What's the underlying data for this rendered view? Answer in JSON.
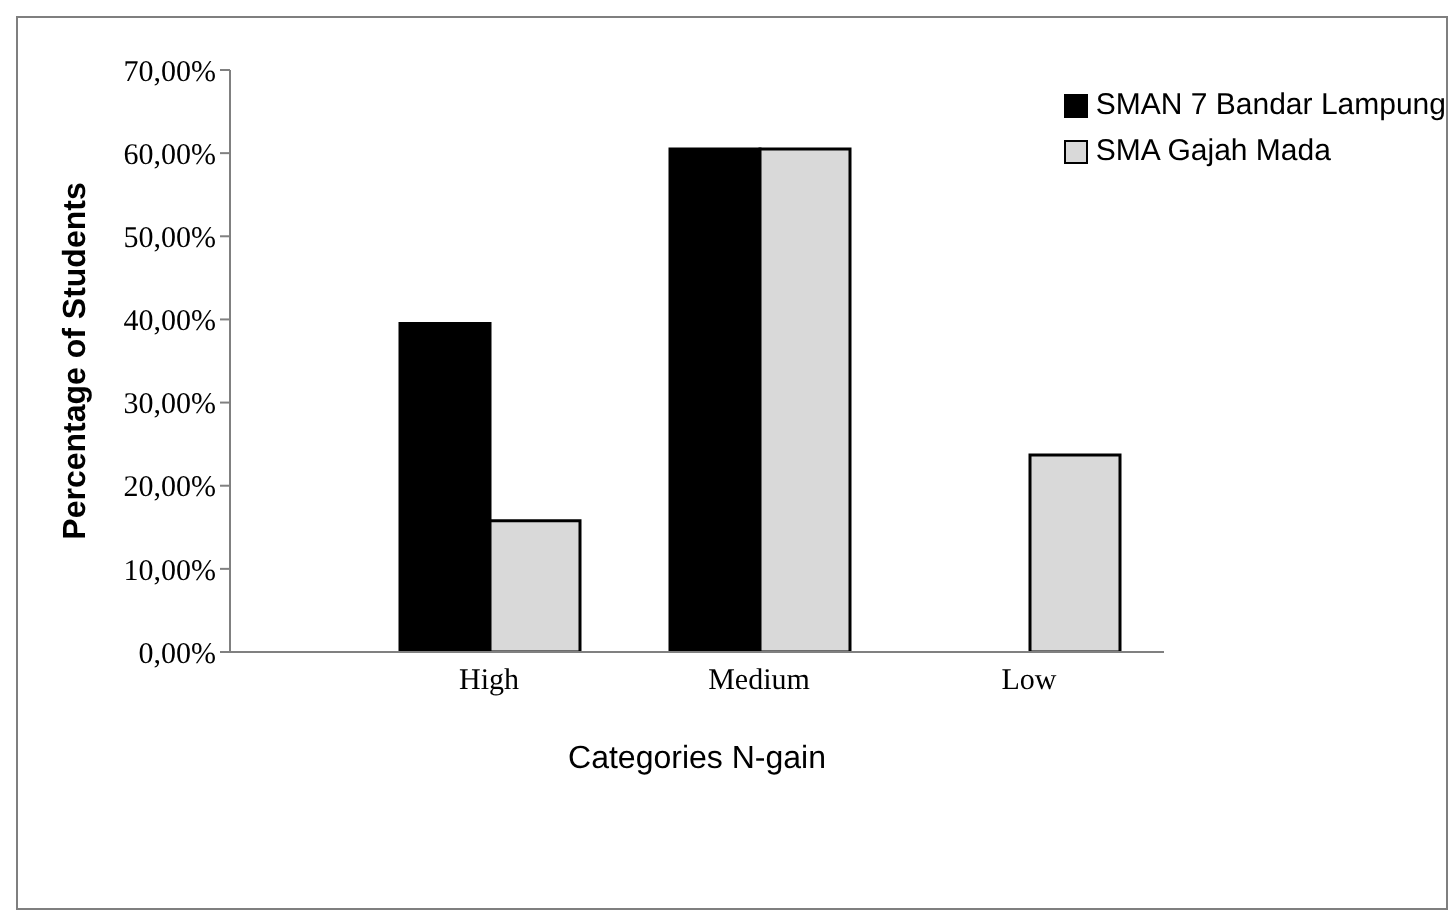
{
  "chart_data": {
    "type": "bar",
    "xlabel": "Categories N-gain",
    "ylabel": "Percentage of Students",
    "categories": [
      "High",
      "Medium",
      "Low"
    ],
    "series": [
      {
        "name": "SMAN 7 Bandar Lampung",
        "color": "#000000",
        "values": [
          39.5,
          60.5,
          0
        ]
      },
      {
        "name": "SMA Gajah Mada",
        "color": "#d9d9d9",
        "values": [
          15.8,
          60.5,
          23.7
        ]
      }
    ],
    "ylim": [
      0,
      70
    ],
    "yticks": [
      {
        "value": 0,
        "label": "0,00%"
      },
      {
        "value": 10,
        "label": "10,00%"
      },
      {
        "value": 20,
        "label": "20,00%"
      },
      {
        "value": 30,
        "label": "30,00%"
      },
      {
        "value": 40,
        "label": "40,00%"
      },
      {
        "value": 50,
        "label": "50,00%"
      },
      {
        "value": 60,
        "label": "60,00%"
      },
      {
        "value": 70,
        "label": "70,00%"
      }
    ],
    "grid": false,
    "legend": "top right"
  }
}
